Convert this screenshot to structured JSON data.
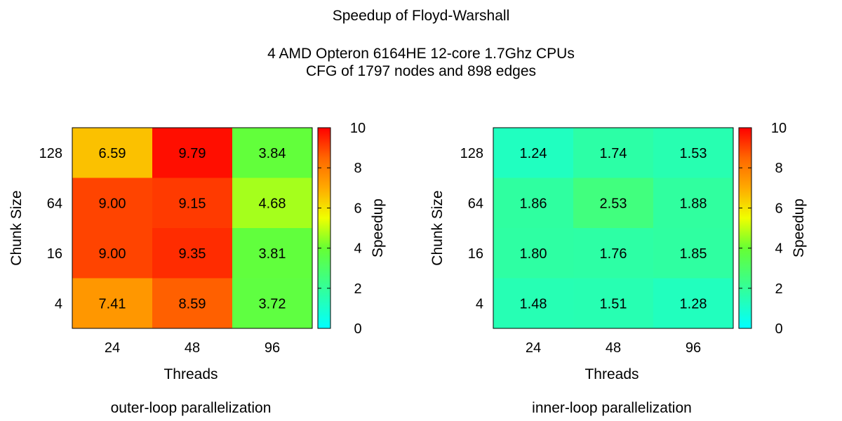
{
  "title": "Speedup of Floyd-Warshall",
  "subtitle_line1": "4 AMD Opteron 6164HE 12-core 1.7Ghz CPUs",
  "subtitle_line2": "CFG of 1797 nodes and 898 edges",
  "chart_data": [
    {
      "type": "heatmap",
      "caption": "outer-loop parallelization",
      "xlabel": "Threads",
      "ylabel": "Chunk Size",
      "colorbar_label": "Speedup",
      "x": [
        "24",
        "48",
        "96"
      ],
      "y": [
        "128",
        "64",
        "16",
        "4"
      ],
      "values": [
        [
          6.59,
          9.79,
          3.84
        ],
        [
          9.0,
          9.15,
          4.68
        ],
        [
          9.0,
          9.35,
          3.81
        ],
        [
          7.41,
          8.59,
          3.72
        ]
      ],
      "value_labels": [
        [
          "6.59",
          "9.79",
          "3.84"
        ],
        [
          "9.00",
          "9.15",
          "4.68"
        ],
        [
          "9.00",
          "9.35",
          "3.81"
        ],
        [
          "7.41",
          "8.59",
          "3.72"
        ]
      ],
      "colorbar_range": [
        0,
        10
      ],
      "colorbar_ticks": [
        "0",
        "2",
        "4",
        "6",
        "8",
        "10"
      ]
    },
    {
      "type": "heatmap",
      "caption": "inner-loop parallelization",
      "xlabel": "Threads",
      "ylabel": "Chunk Size",
      "colorbar_label": "Speedup",
      "x": [
        "24",
        "48",
        "96"
      ],
      "y": [
        "128",
        "64",
        "16",
        "4"
      ],
      "values": [
        [
          1.24,
          1.74,
          1.53
        ],
        [
          1.86,
          2.53,
          1.88
        ],
        [
          1.8,
          1.76,
          1.85
        ],
        [
          1.48,
          1.51,
          1.28
        ]
      ],
      "value_labels": [
        [
          "1.24",
          "1.74",
          "1.53"
        ],
        [
          "1.86",
          "2.53",
          "1.88"
        ],
        [
          "1.80",
          "1.76",
          "1.85"
        ],
        [
          "1.48",
          "1.51",
          "1.28"
        ]
      ],
      "colorbar_range": [
        0,
        10
      ],
      "colorbar_ticks": [
        "0",
        "2",
        "4",
        "6",
        "8",
        "10"
      ]
    }
  ]
}
